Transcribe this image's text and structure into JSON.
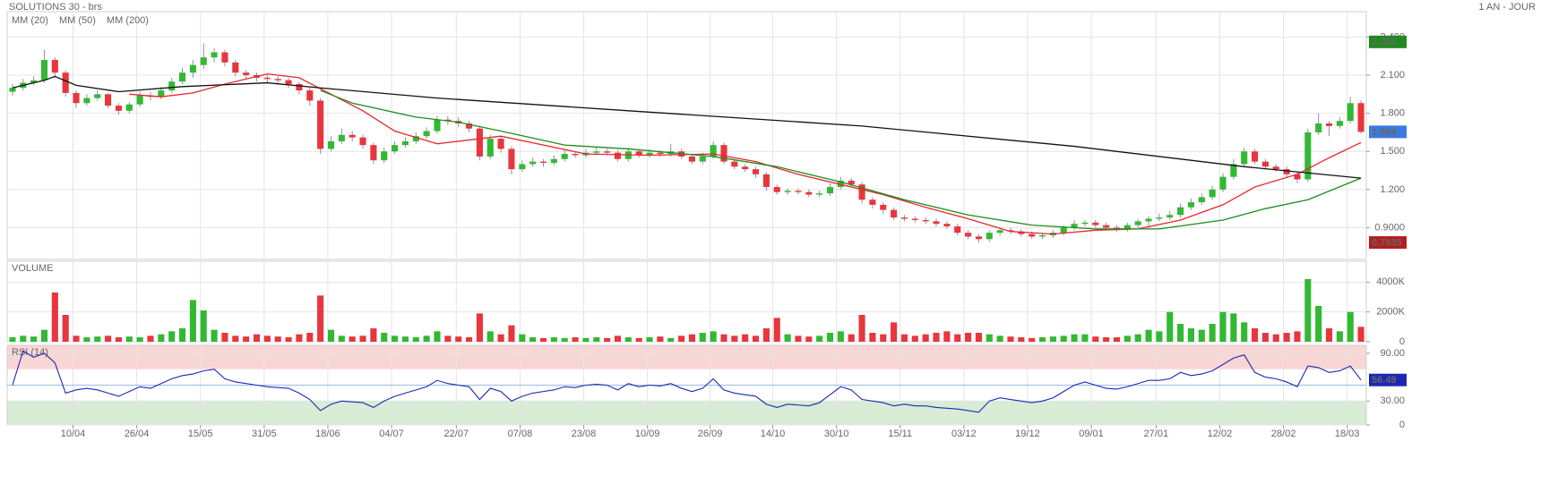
{
  "chart_data": [
    {
      "type": "candlestick",
      "title": "SOLUTIONS 30 - brs",
      "subtitle": "1 AN - JOUR",
      "xlim": [
        -0.5,
        127.5
      ],
      "xticks": [
        {
          "value": 5.7,
          "label": "10/04"
        },
        {
          "value": 11.7,
          "label": "26/04"
        },
        {
          "value": 17.7,
          "label": "15/05"
        },
        {
          "value": 23.7,
          "label": "31/05"
        },
        {
          "value": 29.7,
          "label": "18/06"
        },
        {
          "value": 35.7,
          "label": "04/07"
        },
        {
          "value": 41.8,
          "label": "22/07"
        },
        {
          "value": 47.8,
          "label": "07/08"
        },
        {
          "value": 53.8,
          "label": "23/08"
        },
        {
          "value": 59.8,
          "label": "10/09"
        },
        {
          "value": 65.7,
          "label": "26/09"
        },
        {
          "value": 71.6,
          "label": "14/10"
        },
        {
          "value": 77.6,
          "label": "30/10"
        },
        {
          "value": 83.6,
          "label": "15/11"
        },
        {
          "value": 89.6,
          "label": "03/12"
        },
        {
          "value": 95.6,
          "label": "19/12"
        },
        {
          "value": 101.6,
          "label": "09/01"
        },
        {
          "value": 107.7,
          "label": "27/01"
        },
        {
          "value": 113.7,
          "label": "12/02"
        },
        {
          "value": 119.7,
          "label": "28/02"
        },
        {
          "value": 125.7,
          "label": "18/03"
        }
      ],
      "ylim": [
        0.65,
        2.6
      ],
      "yticks": [
        {
          "value": 0.9,
          "label": "0.9000"
        },
        {
          "value": 1.2,
          "label": "1.200"
        },
        {
          "value": 1.5,
          "label": "1.500"
        },
        {
          "value": 1.8,
          "label": "1.800"
        },
        {
          "value": 2.1,
          "label": "2.100"
        },
        {
          "value": 2.4,
          "label": "2.400"
        }
      ],
      "grid": true,
      "up_color": "#33b833",
      "down_color": "#e8363d",
      "wick_color": "#8a8fb0",
      "open": [
        1.97,
        2.0,
        2.04,
        2.06,
        2.22,
        2.12,
        1.96,
        1.88,
        1.92,
        1.95,
        1.86,
        1.82,
        1.87,
        1.94,
        1.93,
        1.98,
        2.05,
        2.12,
        2.18,
        2.24,
        2.28,
        2.2,
        2.12,
        2.1,
        2.08,
        2.07,
        2.06,
        2.03,
        1.98,
        1.9,
        1.52,
        1.58,
        1.63,
        1.61,
        1.55,
        1.43,
        1.5,
        1.55,
        1.58,
        1.62,
        1.66,
        1.75,
        1.74,
        1.72,
        1.68,
        1.46,
        1.6,
        1.52,
        1.36,
        1.4,
        1.42,
        1.41,
        1.44,
        1.48,
        1.47,
        1.49,
        1.5,
        1.49,
        1.44,
        1.5,
        1.47,
        1.49,
        1.48,
        1.5,
        1.46,
        1.42,
        1.46,
        1.55,
        1.42,
        1.38,
        1.36,
        1.32,
        1.22,
        1.18,
        1.19,
        1.18,
        1.16,
        1.17,
        1.22,
        1.27,
        1.24,
        1.12,
        1.08,
        1.04,
        0.98,
        0.97,
        0.96,
        0.95,
        0.93,
        0.91,
        0.86,
        0.83,
        0.81,
        0.86,
        0.88,
        0.87,
        0.85,
        0.83,
        0.84,
        0.86,
        0.9,
        0.93,
        0.94,
        0.92,
        0.9,
        0.89,
        0.92,
        0.95,
        0.97,
        0.98,
        1.0,
        1.06,
        1.1,
        1.14,
        1.2,
        1.3,
        1.4,
        1.5,
        1.42,
        1.38,
        1.36,
        1.32,
        1.28,
        1.65,
        1.72,
        1.7,
        1.74,
        1.88
      ],
      "high": [
        2.03,
        2.07,
        2.09,
        2.3,
        2.24,
        2.14,
        1.98,
        1.95,
        1.98,
        1.96,
        1.88,
        1.89,
        1.97,
        1.97,
        2.01,
        2.08,
        2.16,
        2.22,
        2.35,
        2.31,
        2.3,
        2.22,
        2.14,
        2.12,
        2.1,
        2.09,
        2.08,
        2.05,
        2.0,
        1.92,
        1.62,
        1.68,
        1.66,
        1.63,
        1.57,
        1.53,
        1.58,
        1.61,
        1.65,
        1.69,
        1.78,
        1.78,
        1.77,
        1.74,
        1.7,
        1.63,
        1.62,
        1.54,
        1.43,
        1.45,
        1.44,
        1.47,
        1.51,
        1.5,
        1.52,
        1.53,
        1.52,
        1.51,
        1.53,
        1.52,
        1.52,
        1.51,
        1.56,
        1.52,
        1.48,
        1.49,
        1.58,
        1.57,
        1.44,
        1.4,
        1.38,
        1.34,
        1.24,
        1.21,
        1.21,
        1.2,
        1.19,
        1.25,
        1.3,
        1.29,
        1.26,
        1.14,
        1.1,
        1.06,
        1.0,
        0.99,
        0.98,
        0.97,
        0.95,
        0.93,
        0.88,
        0.85,
        0.88,
        0.9,
        0.9,
        0.89,
        0.87,
        0.86,
        0.88,
        0.92,
        0.96,
        0.96,
        0.96,
        0.94,
        0.92,
        0.94,
        0.97,
        0.99,
        1.01,
        1.03,
        1.09,
        1.13,
        1.17,
        1.23,
        1.33,
        1.44,
        1.53,
        1.52,
        1.44,
        1.4,
        1.38,
        1.34,
        1.68,
        1.8,
        1.74,
        1.77,
        1.93,
        1.9
      ],
      "low": [
        1.94,
        1.98,
        2.02,
        2.04,
        2.08,
        1.93,
        1.84,
        1.86,
        1.9,
        1.84,
        1.79,
        1.8,
        1.85,
        1.9,
        1.91,
        1.96,
        2.03,
        2.08,
        2.15,
        2.2,
        2.17,
        2.09,
        2.07,
        2.05,
        2.04,
        2.03,
        2.0,
        1.95,
        1.86,
        1.48,
        1.5,
        1.56,
        1.58,
        1.52,
        1.4,
        1.41,
        1.48,
        1.53,
        1.56,
        1.6,
        1.64,
        1.71,
        1.69,
        1.65,
        1.43,
        1.44,
        1.49,
        1.32,
        1.34,
        1.38,
        1.38,
        1.39,
        1.42,
        1.45,
        1.45,
        1.47,
        1.47,
        1.42,
        1.42,
        1.45,
        1.45,
        1.46,
        1.46,
        1.44,
        1.4,
        1.4,
        1.44,
        1.4,
        1.36,
        1.34,
        1.29,
        1.19,
        1.16,
        1.16,
        1.16,
        1.14,
        1.14,
        1.15,
        1.2,
        1.22,
        1.09,
        1.05,
        1.01,
        0.96,
        0.95,
        0.94,
        0.93,
        0.91,
        0.89,
        0.84,
        0.81,
        0.78,
        0.79,
        0.84,
        0.85,
        0.83,
        0.81,
        0.81,
        0.82,
        0.84,
        0.88,
        0.91,
        0.9,
        0.88,
        0.87,
        0.87,
        0.9,
        0.9,
        0.95,
        0.96,
        0.98,
        1.04,
        1.08,
        1.12,
        1.18,
        1.28,
        1.38,
        1.4,
        1.36,
        1.34,
        1.29,
        1.25,
        1.26,
        1.63,
        1.62,
        1.68,
        1.72,
        1.64
      ],
      "close": [
        2.0,
        2.04,
        2.06,
        2.22,
        2.12,
        1.96,
        1.88,
        1.92,
        1.95,
        1.86,
        1.82,
        1.87,
        1.94,
        1.93,
        1.98,
        2.05,
        2.12,
        2.18,
        2.24,
        2.28,
        2.2,
        2.12,
        2.1,
        2.08,
        2.07,
        2.06,
        2.03,
        1.98,
        1.9,
        1.52,
        1.58,
        1.63,
        1.61,
        1.55,
        1.43,
        1.5,
        1.55,
        1.58,
        1.62,
        1.66,
        1.75,
        1.74,
        1.72,
        1.68,
        1.46,
        1.6,
        1.52,
        1.36,
        1.4,
        1.42,
        1.41,
        1.44,
        1.48,
        1.47,
        1.49,
        1.5,
        1.49,
        1.44,
        1.5,
        1.47,
        1.49,
        1.48,
        1.5,
        1.46,
        1.42,
        1.46,
        1.55,
        1.42,
        1.38,
        1.36,
        1.32,
        1.22,
        1.18,
        1.19,
        1.18,
        1.16,
        1.17,
        1.22,
        1.27,
        1.24,
        1.12,
        1.08,
        1.04,
        0.98,
        0.97,
        0.96,
        0.95,
        0.93,
        0.91,
        0.86,
        0.83,
        0.81,
        0.86,
        0.88,
        0.87,
        0.85,
        0.83,
        0.84,
        0.86,
        0.9,
        0.93,
        0.94,
        0.92,
        0.9,
        0.89,
        0.92,
        0.95,
        0.97,
        0.98,
        1.0,
        1.06,
        1.1,
        1.14,
        1.2,
        1.3,
        1.4,
        1.5,
        1.42,
        1.38,
        1.36,
        1.32,
        1.28,
        1.65,
        1.72,
        1.7,
        1.74,
        1.88,
        1.654
      ],
      "series": [
        {
          "name": "MM (20)",
          "color": "#e8262b",
          "x": [
            11,
            14,
            17,
            20,
            24,
            27,
            30,
            33,
            36,
            40,
            44,
            46,
            50,
            54,
            60,
            66,
            70,
            74,
            78,
            82,
            86,
            90,
            94,
            98,
            102,
            106,
            110,
            114,
            117,
            121,
            124,
            127
          ],
          "values": [
            1.95,
            1.93,
            1.96,
            2.03,
            2.11,
            2.08,
            1.95,
            1.82,
            1.66,
            1.56,
            1.6,
            1.62,
            1.55,
            1.48,
            1.47,
            1.48,
            1.42,
            1.32,
            1.24,
            1.16,
            1.06,
            0.97,
            0.87,
            0.85,
            0.88,
            0.89,
            0.96,
            1.08,
            1.22,
            1.32,
            1.45,
            1.57
          ]
        },
        {
          "name": "MM (50)",
          "color": "#1e8c1e",
          "x": [
            29,
            32,
            38,
            42,
            46,
            52,
            58,
            66,
            72,
            78,
            84,
            90,
            96,
            102,
            108,
            114,
            118,
            122,
            127
          ],
          "values": [
            1.98,
            1.88,
            1.77,
            1.73,
            1.66,
            1.55,
            1.52,
            1.46,
            1.38,
            1.26,
            1.12,
            1.0,
            0.92,
            0.89,
            0.89,
            0.96,
            1.05,
            1.12,
            1.29
          ]
        },
        {
          "name": "MM (200)",
          "color": "#111111",
          "x": [
            0,
            3,
            4,
            6,
            10,
            16,
            24,
            29,
            40,
            58,
            80,
            100,
            116,
            127
          ],
          "values": [
            2.0,
            2.06,
            2.09,
            2.02,
            1.97,
            2.01,
            2.04,
            2.0,
            1.92,
            1.82,
            1.7,
            1.54,
            1.38,
            1.29
          ]
        }
      ],
      "markers": [
        {
          "value": 2.362,
          "label": "2.362",
          "color": "#1f8a1f"
        },
        {
          "value": 1.654,
          "label": "1.654",
          "color": "#3a7be0"
        },
        {
          "value": 0.7835,
          "label": "0.7835",
          "color": "#b41e1e"
        }
      ]
    },
    {
      "type": "bar",
      "title": "VOLUME",
      "title_color": "#2ea82e",
      "ylim": [
        0,
        5400000
      ],
      "yticks": [
        0,
        {
          "value": 2000000,
          "label": "2000K"
        },
        {
          "value": 4000000,
          "label": "4000K"
        }
      ],
      "grid": true,
      "values": [
        300000,
        400000,
        350000,
        800000,
        3300000,
        1800000,
        400000,
        300000,
        350000,
        400000,
        300000,
        350000,
        300000,
        400000,
        500000,
        700000,
        900000,
        2800000,
        2100000,
        800000,
        600000,
        400000,
        350000,
        500000,
        400000,
        350000,
        300000,
        500000,
        600000,
        3100000,
        800000,
        400000,
        350000,
        400000,
        900000,
        600000,
        400000,
        350000,
        300000,
        400000,
        700000,
        400000,
        350000,
        300000,
        1900000,
        700000,
        500000,
        1100000,
        500000,
        300000,
        250000,
        300000,
        250000,
        300000,
        250000,
        300000,
        250000,
        400000,
        300000,
        250000,
        300000,
        350000,
        250000,
        400000,
        500000,
        600000,
        700000,
        500000,
        400000,
        500000,
        400000,
        900000,
        1600000,
        500000,
        400000,
        350000,
        400000,
        600000,
        700000,
        500000,
        1800000,
        600000,
        500000,
        1300000,
        500000,
        400000,
        500000,
        600000,
        700000,
        500000,
        600000,
        600000,
        500000,
        400000,
        350000,
        300000,
        250000,
        300000,
        350000,
        400000,
        500000,
        500000,
        350000,
        300000,
        300000,
        400000,
        500000,
        800000,
        700000,
        2000000,
        1200000,
        900000,
        800000,
        1200000,
        2000000,
        1900000,
        1300000,
        900000,
        600000,
        500000,
        600000,
        700000,
        4200000,
        2400000,
        900000,
        700000,
        2000000,
        1000000
      ]
    },
    {
      "type": "line",
      "title": "RSI (14)",
      "title_color": "#2a3a9a",
      "ylim": [
        0,
        100
      ],
      "yticks": [
        0,
        {
          "value": 30,
          "label": "30.00"
        },
        {
          "value": 90,
          "label": "90.00"
        }
      ],
      "zones": [
        {
          "from": 70,
          "to": 100,
          "color": "#f9d6d6"
        },
        {
          "from": 0,
          "to": 30,
          "color": "#d8ecd6"
        }
      ],
      "midline": 50,
      "color": "#1c28b4",
      "values": [
        50,
        93,
        85,
        90,
        78,
        40,
        44,
        46,
        44,
        40,
        36,
        42,
        48,
        46,
        52,
        58,
        62,
        64,
        68,
        70,
        58,
        54,
        52,
        50,
        48,
        47,
        46,
        40,
        32,
        18,
        26,
        30,
        29,
        28,
        22,
        30,
        36,
        40,
        44,
        48,
        56,
        52,
        50,
        48,
        32,
        46,
        42,
        30,
        36,
        40,
        42,
        44,
        48,
        47,
        50,
        51,
        50,
        44,
        52,
        48,
        50,
        49,
        52,
        46,
        42,
        46,
        58,
        44,
        40,
        38,
        36,
        26,
        22,
        26,
        25,
        24,
        28,
        38,
        48,
        44,
        32,
        30,
        28,
        24,
        26,
        24,
        24,
        22,
        21,
        20,
        18,
        16,
        30,
        34,
        32,
        30,
        28,
        30,
        34,
        42,
        50,
        54,
        50,
        46,
        45,
        48,
        52,
        56,
        56,
        58,
        66,
        62,
        64,
        68,
        76,
        84,
        88,
        66,
        60,
        58,
        54,
        48,
        74,
        72,
        66,
        68,
        74,
        56.49
      ],
      "markers": [
        {
          "value": 56.49,
          "label": "56.49",
          "color": "#1c28b4"
        }
      ]
    }
  ]
}
